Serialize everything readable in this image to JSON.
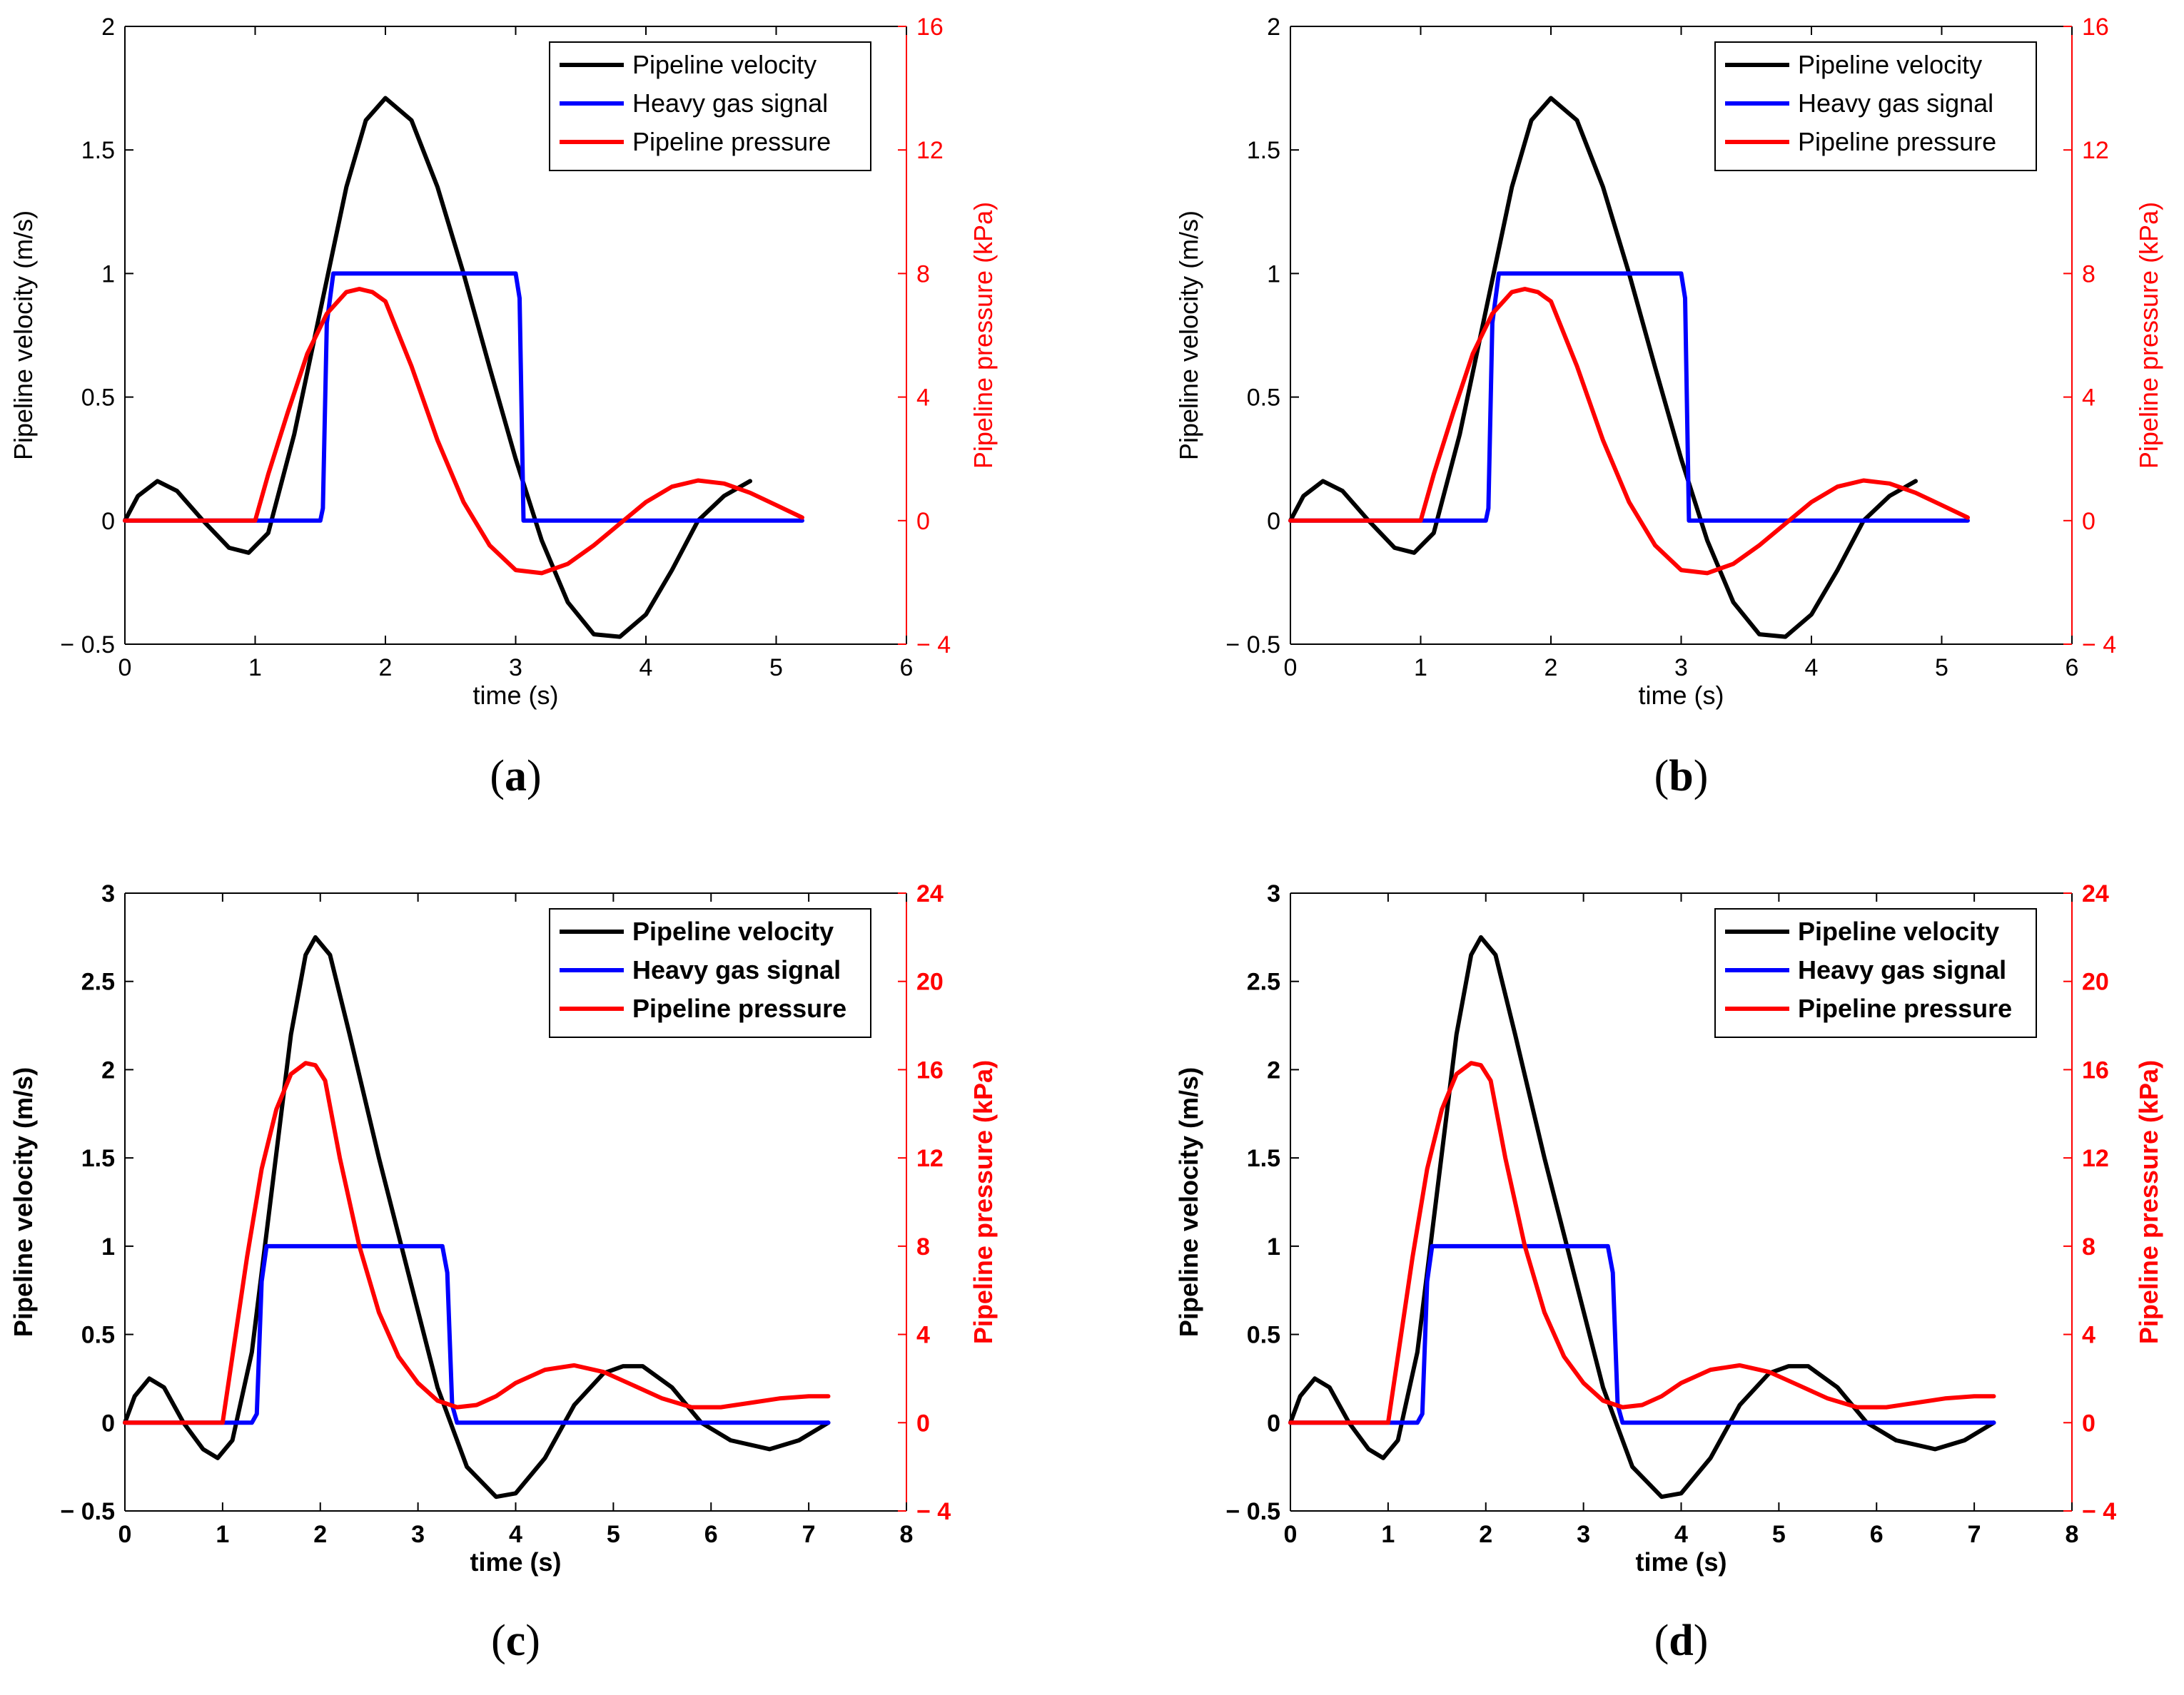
{
  "chart_data": [
    {
      "type": "line",
      "panel_label": "(a)",
      "panel_letter": "a",
      "bold_labels": false,
      "xlabel": "time (s)",
      "ylabel": "Pipeline velocity (m/s)",
      "y2label": "Pipeline pressure (kPa)",
      "xlim": [
        0,
        6
      ],
      "ylim": [
        -0.5,
        2
      ],
      "y2lim": [
        -4,
        16
      ],
      "xticks": [
        0,
        1,
        2,
        3,
        4,
        5,
        6
      ],
      "yticks": [
        -0.5,
        0,
        0.5,
        1,
        1.5,
        2
      ],
      "y2ticks": [
        -4,
        0,
        4,
        8,
        12,
        16
      ],
      "grid": false,
      "legend_position": "top-right",
      "series": [
        {
          "name": "Pipeline velocity",
          "color": "#000000",
          "axis": "left",
          "x": [
            0,
            0.1,
            0.25,
            0.4,
            0.6,
            0.8,
            0.95,
            1.1,
            1.3,
            1.5,
            1.7,
            1.85,
            2.0,
            2.2,
            2.4,
            2.6,
            2.8,
            3.0,
            3.2,
            3.4,
            3.6,
            3.8,
            4.0,
            4.2,
            4.4,
            4.6,
            4.8
          ],
          "y": [
            0,
            0.1,
            0.16,
            0.12,
            0.0,
            -0.11,
            -0.13,
            -0.05,
            0.35,
            0.85,
            1.35,
            1.62,
            1.71,
            1.62,
            1.35,
            1.0,
            0.62,
            0.25,
            -0.08,
            -0.33,
            -0.46,
            -0.47,
            -0.38,
            -0.2,
            0.0,
            0.1,
            0.16
          ]
        },
        {
          "name": "Heavy gas signal",
          "color": "#0000ff",
          "axis": "left",
          "x": [
            0,
            1.5,
            1.52,
            1.55,
            1.6,
            2.0,
            3.0,
            3.03,
            3.06,
            5.2
          ],
          "y": [
            0,
            0,
            0.05,
            0.8,
            1.0,
            1.0,
            1.0,
            0.9,
            0,
            0
          ]
        },
        {
          "name": "Pipeline pressure",
          "color": "#ff0000",
          "axis": "right",
          "x": [
            0,
            1.0,
            1.1,
            1.25,
            1.4,
            1.55,
            1.7,
            1.8,
            1.9,
            2.0,
            2.2,
            2.4,
            2.6,
            2.8,
            3.0,
            3.2,
            3.4,
            3.6,
            3.8,
            4.0,
            4.2,
            4.4,
            4.6,
            4.8,
            5.0,
            5.2
          ],
          "y": [
            0,
            0,
            1.5,
            3.5,
            5.4,
            6.7,
            7.4,
            7.5,
            7.4,
            7.1,
            5.0,
            2.6,
            0.6,
            -0.8,
            -1.6,
            -1.7,
            -1.4,
            -0.8,
            -0.1,
            0.6,
            1.1,
            1.3,
            1.2,
            0.9,
            0.5,
            0.1
          ]
        }
      ]
    },
    {
      "type": "line",
      "panel_label": "(b)",
      "panel_letter": "b",
      "bold_labels": false,
      "xlabel": "time (s)",
      "ylabel": "Pipeline velocity (m/s)",
      "y2label": "Pipeline pressure (kPa)",
      "xlim": [
        0,
        6
      ],
      "ylim": [
        -0.5,
        2
      ],
      "y2lim": [
        -4,
        16
      ],
      "xticks": [
        0,
        1,
        2,
        3,
        4,
        5,
        6
      ],
      "yticks": [
        -0.5,
        0,
        0.5,
        1,
        1.5,
        2
      ],
      "y2ticks": [
        -4,
        0,
        4,
        8,
        12,
        16
      ],
      "grid": false,
      "legend_position": "top-right",
      "series": [
        {
          "name": "Pipeline velocity",
          "color": "#000000",
          "axis": "left",
          "x": [
            0,
            0.1,
            0.25,
            0.4,
            0.6,
            0.8,
            0.95,
            1.1,
            1.3,
            1.5,
            1.7,
            1.85,
            2.0,
            2.2,
            2.4,
            2.6,
            2.8,
            3.0,
            3.2,
            3.4,
            3.6,
            3.8,
            4.0,
            4.2,
            4.4,
            4.6,
            4.8
          ],
          "y": [
            0,
            0.1,
            0.16,
            0.12,
            0.0,
            -0.11,
            -0.13,
            -0.05,
            0.35,
            0.85,
            1.35,
            1.62,
            1.71,
            1.62,
            1.35,
            1.0,
            0.62,
            0.25,
            -0.08,
            -0.33,
            -0.46,
            -0.47,
            -0.38,
            -0.2,
            0.0,
            0.1,
            0.16
          ]
        },
        {
          "name": "Heavy gas signal",
          "color": "#0000ff",
          "axis": "left",
          "x": [
            0,
            1.5,
            1.52,
            1.55,
            1.6,
            2.0,
            3.0,
            3.03,
            3.06,
            5.2
          ],
          "y": [
            0,
            0,
            0.05,
            0.8,
            1.0,
            1.0,
            1.0,
            0.9,
            0,
            0
          ]
        },
        {
          "name": "Pipeline pressure",
          "color": "#ff0000",
          "axis": "right",
          "x": [
            0,
            1.0,
            1.1,
            1.25,
            1.4,
            1.55,
            1.7,
            1.8,
            1.9,
            2.0,
            2.2,
            2.4,
            2.6,
            2.8,
            3.0,
            3.2,
            3.4,
            3.6,
            3.8,
            4.0,
            4.2,
            4.4,
            4.6,
            4.8,
            5.0,
            5.2
          ],
          "y": [
            0,
            0,
            1.5,
            3.5,
            5.4,
            6.7,
            7.4,
            7.5,
            7.4,
            7.1,
            5.0,
            2.6,
            0.6,
            -0.8,
            -1.6,
            -1.7,
            -1.4,
            -0.8,
            -0.1,
            0.6,
            1.1,
            1.3,
            1.2,
            0.9,
            0.5,
            0.1
          ]
        }
      ]
    },
    {
      "type": "line",
      "panel_label": "(c)",
      "panel_letter": "c",
      "bold_labels": true,
      "xlabel": "time (s)",
      "ylabel": "Pipeline velocity (m/s)",
      "y2label": "Pipeline pressure (kPa)",
      "xlim": [
        0,
        8
      ],
      "ylim": [
        -0.5,
        3
      ],
      "y2lim": [
        -4,
        24
      ],
      "xticks": [
        0,
        1,
        2,
        3,
        4,
        5,
        6,
        7,
        8
      ],
      "yticks": [
        -0.5,
        0,
        0.5,
        1,
        1.5,
        2,
        2.5,
        3
      ],
      "y2ticks": [
        -4,
        0,
        4,
        8,
        12,
        16,
        20,
        24
      ],
      "grid": false,
      "legend_position": "top-right",
      "series": [
        {
          "name": "Pipeline velocity",
          "color": "#000000",
          "axis": "left",
          "x": [
            0,
            0.1,
            0.25,
            0.4,
            0.6,
            0.8,
            0.95,
            1.1,
            1.3,
            1.5,
            1.7,
            1.85,
            1.95,
            2.1,
            2.3,
            2.6,
            2.9,
            3.2,
            3.5,
            3.8,
            4.0,
            4.3,
            4.6,
            4.9,
            5.1,
            5.3,
            5.6,
            5.9,
            6.2,
            6.6,
            6.9,
            7.2
          ],
          "y": [
            0,
            0.15,
            0.25,
            0.2,
            0.0,
            -0.15,
            -0.2,
            -0.1,
            0.4,
            1.3,
            2.2,
            2.65,
            2.75,
            2.65,
            2.2,
            1.5,
            0.85,
            0.2,
            -0.25,
            -0.42,
            -0.4,
            -0.2,
            0.1,
            0.28,
            0.32,
            0.32,
            0.2,
            0.0,
            -0.1,
            -0.15,
            -0.1,
            0.0
          ]
        },
        {
          "name": "Heavy gas signal",
          "color": "#0000ff",
          "axis": "left",
          "x": [
            0,
            1.3,
            1.35,
            1.4,
            1.45,
            2.0,
            3.25,
            3.3,
            3.35,
            3.4,
            7.2
          ],
          "y": [
            0,
            0,
            0.05,
            0.8,
            1.0,
            1.0,
            1.0,
            0.85,
            0.1,
            0,
            0
          ]
        },
        {
          "name": "Pipeline pressure",
          "color": "#ff0000",
          "axis": "right",
          "x": [
            0,
            1.0,
            1.1,
            1.25,
            1.4,
            1.55,
            1.7,
            1.85,
            1.95,
            2.05,
            2.2,
            2.4,
            2.6,
            2.8,
            3.0,
            3.2,
            3.4,
            3.6,
            3.8,
            4.0,
            4.3,
            4.6,
            4.9,
            5.2,
            5.5,
            5.8,
            6.1,
            6.4,
            6.7,
            7.0,
            7.2
          ],
          "y": [
            0,
            0,
            3.0,
            7.5,
            11.5,
            14.2,
            15.8,
            16.3,
            16.2,
            15.5,
            12.0,
            8.0,
            5.0,
            3.0,
            1.8,
            1.0,
            0.7,
            0.8,
            1.2,
            1.8,
            2.4,
            2.6,
            2.3,
            1.7,
            1.1,
            0.7,
            0.7,
            0.9,
            1.1,
            1.2,
            1.2
          ]
        }
      ]
    },
    {
      "type": "line",
      "panel_label": "(d)",
      "panel_letter": "d",
      "bold_labels": true,
      "xlabel": "time (s)",
      "ylabel": "Pipeline velocity (m/s)",
      "y2label": "Pipeline pressure (kPa)",
      "xlim": [
        0,
        8
      ],
      "ylim": [
        -0.5,
        3
      ],
      "y2lim": [
        -4,
        24
      ],
      "xticks": [
        0,
        1,
        2,
        3,
        4,
        5,
        6,
        7,
        8
      ],
      "yticks": [
        -0.5,
        0,
        0.5,
        1,
        1.5,
        2,
        2.5,
        3
      ],
      "y2ticks": [
        -4,
        0,
        4,
        8,
        12,
        16,
        20,
        24
      ],
      "grid": false,
      "legend_position": "top-right",
      "series": [
        {
          "name": "Pipeline velocity",
          "color": "#000000",
          "axis": "left",
          "x": [
            0,
            0.1,
            0.25,
            0.4,
            0.6,
            0.8,
            0.95,
            1.1,
            1.3,
            1.5,
            1.7,
            1.85,
            1.95,
            2.1,
            2.3,
            2.6,
            2.9,
            3.2,
            3.5,
            3.8,
            4.0,
            4.3,
            4.6,
            4.9,
            5.1,
            5.3,
            5.6,
            5.9,
            6.2,
            6.6,
            6.9,
            7.2
          ],
          "y": [
            0,
            0.15,
            0.25,
            0.2,
            0.0,
            -0.15,
            -0.2,
            -0.1,
            0.4,
            1.3,
            2.2,
            2.65,
            2.75,
            2.65,
            2.2,
            1.5,
            0.85,
            0.2,
            -0.25,
            -0.42,
            -0.4,
            -0.2,
            0.1,
            0.28,
            0.32,
            0.32,
            0.2,
            0.0,
            -0.1,
            -0.15,
            -0.1,
            0.0
          ]
        },
        {
          "name": "Heavy gas signal",
          "color": "#0000ff",
          "axis": "left",
          "x": [
            0,
            1.3,
            1.35,
            1.4,
            1.45,
            2.0,
            3.25,
            3.3,
            3.35,
            3.4,
            7.2
          ],
          "y": [
            0,
            0,
            0.05,
            0.8,
            1.0,
            1.0,
            1.0,
            0.85,
            0.1,
            0,
            0
          ]
        },
        {
          "name": "Pipeline pressure",
          "color": "#ff0000",
          "axis": "right",
          "x": [
            0,
            1.0,
            1.1,
            1.25,
            1.4,
            1.55,
            1.7,
            1.85,
            1.95,
            2.05,
            2.2,
            2.4,
            2.6,
            2.8,
            3.0,
            3.2,
            3.4,
            3.6,
            3.8,
            4.0,
            4.3,
            4.6,
            4.9,
            5.2,
            5.5,
            5.8,
            6.1,
            6.4,
            6.7,
            7.0,
            7.2
          ],
          "y": [
            0,
            0,
            3.0,
            7.5,
            11.5,
            14.2,
            15.8,
            16.3,
            16.2,
            15.5,
            12.0,
            8.0,
            5.0,
            3.0,
            1.8,
            1.0,
            0.7,
            0.8,
            1.2,
            1.8,
            2.4,
            2.6,
            2.3,
            1.7,
            1.1,
            0.7,
            0.7,
            0.9,
            1.1,
            1.2,
            1.2
          ]
        }
      ]
    }
  ]
}
